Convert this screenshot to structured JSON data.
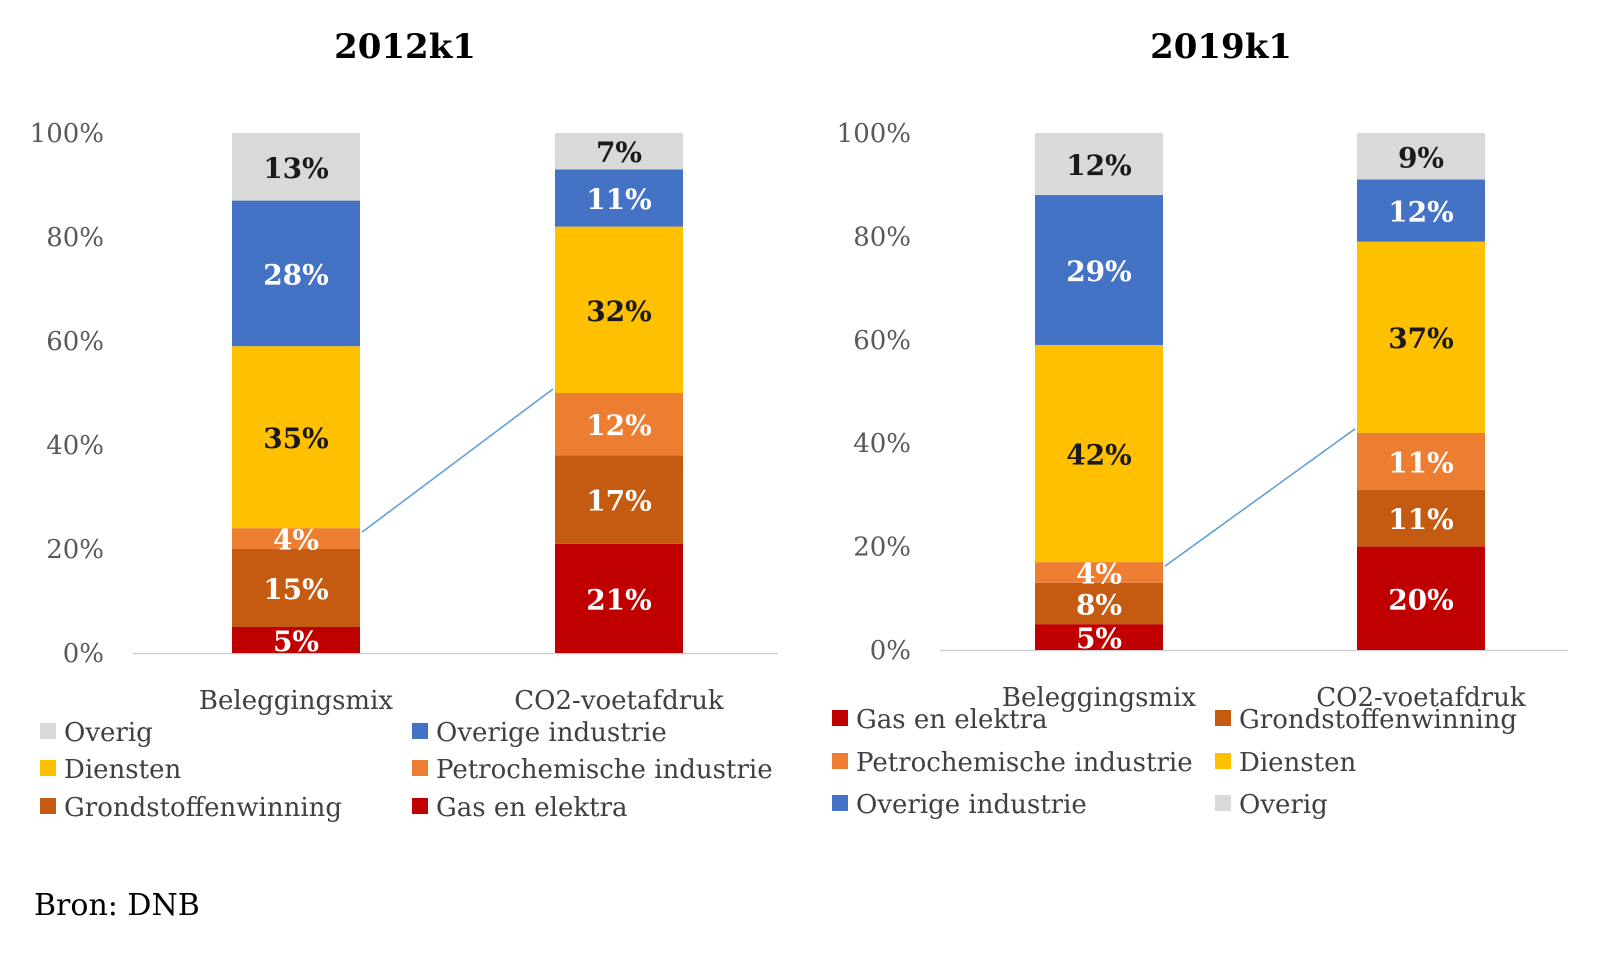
{
  "source": "Bron: DNB",
  "colors": {
    "Gas en elektra": "#c00000",
    "Grondstoffenwinning": "#c55a11",
    "Petrochemische industrie": "#ed7d31",
    "Diensten": "#ffc000",
    "Overige industrie": "#4472c4",
    "Overig": "#d9d9d9",
    "axis": "#d0d0d0",
    "tick_text": "#595959",
    "connector": "#5b9bd5"
  },
  "chart_data": [
    {
      "type": "bar",
      "stacked": true,
      "title": "2012k1",
      "categories": [
        "Beleggingsmix",
        "CO2-voetafdruk"
      ],
      "ylim": [
        0,
        100
      ],
      "yticks": [
        "0%",
        "20%",
        "40%",
        "60%",
        "80%",
        "100%"
      ],
      "series": [
        {
          "name": "Gas en elektra",
          "values": [
            5,
            21
          ],
          "labels": [
            "5%",
            "21%"
          ]
        },
        {
          "name": "Grondstoffenwinning",
          "values": [
            15,
            17
          ],
          "labels": [
            "15%",
            "17%"
          ]
        },
        {
          "name": "Petrochemische industrie",
          "values": [
            4,
            12
          ],
          "labels": [
            "4%",
            "12%"
          ]
        },
        {
          "name": "Diensten",
          "values": [
            35,
            32
          ],
          "labels": [
            "35%",
            "32%"
          ]
        },
        {
          "name": "Overige industrie",
          "values": [
            28,
            11
          ],
          "labels": [
            "28%",
            "11%"
          ]
        },
        {
          "name": "Overig",
          "values": [
            13,
            7
          ],
          "labels": [
            "13%",
            "7%"
          ]
        }
      ],
      "legend_order": [
        "Overig",
        "Overige industrie",
        "Diensten",
        "Petrochemische industrie",
        "Grondstoffenwinning",
        "Gas en elektra"
      ],
      "legend_position": "bottom"
    },
    {
      "type": "bar",
      "stacked": true,
      "title": "2019k1",
      "categories": [
        "Beleggingsmix",
        "CO2-voetafdruk"
      ],
      "ylim": [
        0,
        100
      ],
      "yticks": [
        "0%",
        "20%",
        "40%",
        "60%",
        "80%",
        "100%"
      ],
      "series": [
        {
          "name": "Gas en elektra",
          "values": [
            5,
            20
          ],
          "labels": [
            "5%",
            "20%"
          ]
        },
        {
          "name": "Grondstoffenwinning",
          "values": [
            8,
            11
          ],
          "labels": [
            "8%",
            "11%"
          ]
        },
        {
          "name": "Petrochemische industrie",
          "values": [
            4,
            11
          ],
          "labels": [
            "4%",
            "11%"
          ]
        },
        {
          "name": "Diensten",
          "values": [
            42,
            37
          ],
          "labels": [
            "42%",
            "37%"
          ]
        },
        {
          "name": "Overige industrie",
          "values": [
            29,
            12
          ],
          "labels": [
            "29%",
            "12%"
          ]
        },
        {
          "name": "Overig",
          "values": [
            12,
            9
          ],
          "labels": [
            "12%",
            "9%"
          ]
        }
      ],
      "legend_order": [
        "Gas en elektra",
        "Grondstoffenwinning",
        "Petrochemische industrie",
        "Diensten",
        "Overige industrie",
        "Overig"
      ],
      "legend_position": "bottom"
    }
  ]
}
